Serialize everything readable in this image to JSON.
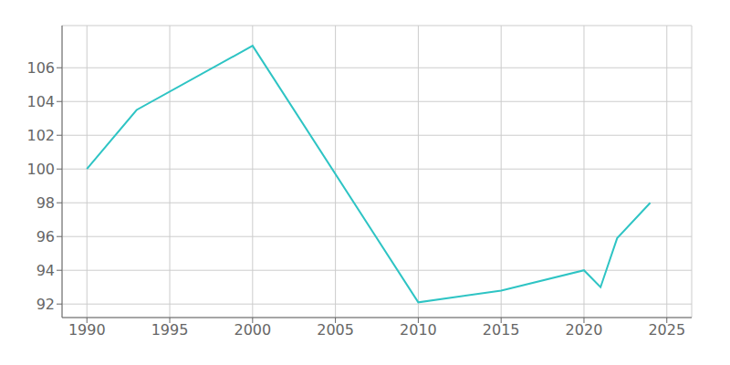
{
  "chart_data": {
    "type": "line",
    "x": [
      1990,
      1993,
      2000,
      2010,
      2015,
      2020,
      2021,
      2022,
      2024
    ],
    "values": [
      100,
      103.5,
      107.3,
      92.1,
      92.8,
      94.0,
      93.0,
      95.9,
      98.0
    ],
    "color": "#2EC4C4",
    "xlim": [
      1988.5,
      2026.5
    ],
    "ylim": [
      91.2,
      108.5
    ],
    "xticks": [
      1990,
      1995,
      2000,
      2005,
      2010,
      2015,
      2020,
      2025
    ],
    "yticks": [
      92,
      94,
      96,
      98,
      100,
      102,
      104,
      106
    ],
    "grid": true
  }
}
